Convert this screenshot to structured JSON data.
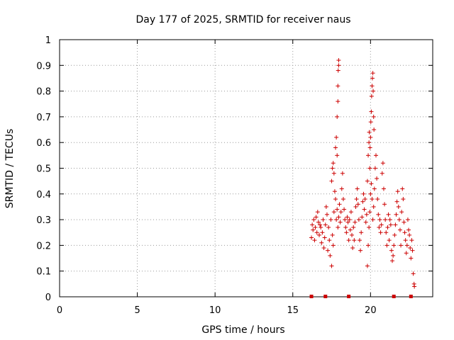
{
  "chart_data": {
    "type": "scatter",
    "title": "Day 177 of 2025, SRMTID for receiver naus",
    "xlabel": "GPS time / hours",
    "ylabel": "SRMTID / TECUs",
    "xlim": [
      0,
      24
    ],
    "ylim": [
      0,
      1
    ],
    "xticks": [
      0,
      5,
      10,
      15,
      20
    ],
    "xtick_labels": [
      "0",
      "5",
      "10",
      "15",
      "20"
    ],
    "yticks": [
      0,
      0.1,
      0.2,
      0.3,
      0.4,
      0.5,
      0.6,
      0.7,
      0.8,
      0.9,
      1
    ],
    "ytick_labels": [
      "0",
      "0.1",
      "0.2",
      "0.3",
      "0.4",
      "0.5",
      "0.6",
      "0.7",
      "0.8",
      "0.9",
      "1"
    ],
    "grid": true,
    "marker": "plus",
    "color": "#cc0000",
    "series": [
      {
        "name": "SRMTID",
        "points": [
          [
            16.2,
            0.23
          ],
          [
            16.25,
            0.28
          ],
          [
            16.3,
            0.26
          ],
          [
            16.35,
            0.3
          ],
          [
            16.4,
            0.22
          ],
          [
            16.45,
            0.27
          ],
          [
            16.5,
            0.31
          ],
          [
            16.55,
            0.25
          ],
          [
            16.6,
            0.33
          ],
          [
            16.65,
            0.29
          ],
          [
            16.7,
            0.24
          ],
          [
            16.75,
            0.28
          ],
          [
            16.8,
            0.27
          ],
          [
            16.85,
            0.21
          ],
          [
            16.9,
            0.25
          ],
          [
            16.95,
            0.3
          ],
          [
            17.0,
            0.19
          ],
          [
            17.05,
            0.23
          ],
          [
            17.1,
            0.28
          ],
          [
            17.15,
            0.35
          ],
          [
            17.2,
            0.32
          ],
          [
            17.25,
            0.18
          ],
          [
            17.3,
            0.27
          ],
          [
            17.35,
            0.22
          ],
          [
            17.4,
            0.16
          ],
          [
            17.45,
            0.3
          ],
          [
            17.5,
            0.12
          ],
          [
            17.55,
            0.24
          ],
          [
            17.6,
            0.2
          ],
          [
            17.65,
            0.33
          ],
          [
            17.5,
            0.45
          ],
          [
            17.55,
            0.5
          ],
          [
            17.6,
            0.52
          ],
          [
            17.65,
            0.48
          ],
          [
            17.7,
            0.41
          ],
          [
            17.75,
            0.58
          ],
          [
            17.8,
            0.62
          ],
          [
            17.85,
            0.55
          ],
          [
            17.85,
            0.7
          ],
          [
            17.9,
            0.76
          ],
          [
            17.9,
            0.82
          ],
          [
            17.92,
            0.88
          ],
          [
            17.95,
            0.9
          ],
          [
            17.95,
            0.92
          ],
          [
            17.75,
            0.38
          ],
          [
            17.8,
            0.3
          ],
          [
            17.85,
            0.34
          ],
          [
            17.9,
            0.27
          ],
          [
            17.95,
            0.31
          ],
          [
            18.0,
            0.36
          ],
          [
            18.05,
            0.29
          ],
          [
            18.1,
            0.33
          ],
          [
            18.15,
            0.42
          ],
          [
            18.2,
            0.48
          ],
          [
            18.25,
            0.38
          ],
          [
            18.3,
            0.34
          ],
          [
            18.35,
            0.3
          ],
          [
            18.4,
            0.27
          ],
          [
            18.45,
            0.25
          ],
          [
            18.5,
            0.31
          ],
          [
            18.55,
            0.29
          ],
          [
            18.6,
            0.22
          ],
          [
            18.65,
            0.3
          ],
          [
            18.7,
            0.26
          ],
          [
            18.75,
            0.33
          ],
          [
            18.8,
            0.24
          ],
          [
            18.85,
            0.19
          ],
          [
            18.9,
            0.27
          ],
          [
            18.95,
            0.22
          ],
          [
            19.0,
            0.29
          ],
          [
            19.05,
            0.35
          ],
          [
            19.1,
            0.38
          ],
          [
            19.15,
            0.42
          ],
          [
            19.2,
            0.36
          ],
          [
            19.25,
            0.3
          ],
          [
            19.3,
            0.22
          ],
          [
            19.35,
            0.18
          ],
          [
            19.4,
            0.25
          ],
          [
            19.45,
            0.31
          ],
          [
            19.5,
            0.37
          ],
          [
            19.55,
            0.4
          ],
          [
            19.6,
            0.34
          ],
          [
            19.65,
            0.38
          ],
          [
            19.7,
            0.29
          ],
          [
            19.75,
            0.32
          ],
          [
            19.8,
            0.45
          ],
          [
            19.85,
            0.55
          ],
          [
            19.9,
            0.6
          ],
          [
            19.92,
            0.64
          ],
          [
            19.95,
            0.5
          ],
          [
            19.97,
            0.58
          ],
          [
            20.0,
            0.62
          ],
          [
            20.02,
            0.68
          ],
          [
            20.05,
            0.72
          ],
          [
            20.07,
            0.78
          ],
          [
            20.1,
            0.82
          ],
          [
            20.12,
            0.85
          ],
          [
            20.15,
            0.87
          ],
          [
            20.17,
            0.8
          ],
          [
            20.2,
            0.7
          ],
          [
            20.22,
            0.65
          ],
          [
            19.8,
            0.12
          ],
          [
            19.85,
            0.2
          ],
          [
            19.9,
            0.27
          ],
          [
            19.95,
            0.33
          ],
          [
            20.0,
            0.4
          ],
          [
            20.05,
            0.44
          ],
          [
            20.1,
            0.38
          ],
          [
            20.15,
            0.3
          ],
          [
            20.2,
            0.35
          ],
          [
            20.25,
            0.42
          ],
          [
            20.3,
            0.5
          ],
          [
            20.35,
            0.55
          ],
          [
            20.4,
            0.46
          ],
          [
            20.45,
            0.38
          ],
          [
            20.5,
            0.32
          ],
          [
            20.55,
            0.27
          ],
          [
            20.6,
            0.3
          ],
          [
            20.65,
            0.25
          ],
          [
            20.7,
            0.28
          ],
          [
            20.75,
            0.48
          ],
          [
            20.8,
            0.52
          ],
          [
            20.85,
            0.42
          ],
          [
            20.9,
            0.36
          ],
          [
            20.95,
            0.3
          ],
          [
            21.0,
            0.25
          ],
          [
            21.05,
            0.2
          ],
          [
            21.1,
            0.27
          ],
          [
            21.15,
            0.32
          ],
          [
            21.2,
            0.22
          ],
          [
            21.25,
            0.3
          ],
          [
            21.3,
            0.28
          ],
          [
            21.35,
            0.18
          ],
          [
            21.4,
            0.14
          ],
          [
            21.45,
            0.16
          ],
          [
            21.5,
            0.2
          ],
          [
            21.55,
            0.24
          ],
          [
            21.6,
            0.28
          ],
          [
            21.65,
            0.32
          ],
          [
            21.7,
            0.37
          ],
          [
            21.75,
            0.41
          ],
          [
            21.8,
            0.35
          ],
          [
            21.85,
            0.3
          ],
          [
            21.9,
            0.26
          ],
          [
            21.95,
            0.2
          ],
          [
            22.0,
            0.33
          ],
          [
            22.05,
            0.42
          ],
          [
            22.1,
            0.38
          ],
          [
            22.15,
            0.29
          ],
          [
            22.2,
            0.25
          ],
          [
            22.25,
            0.22
          ],
          [
            22.3,
            0.17
          ],
          [
            22.35,
            0.2
          ],
          [
            22.4,
            0.3
          ],
          [
            22.45,
            0.26
          ],
          [
            22.5,
            0.24
          ],
          [
            22.55,
            0.19
          ],
          [
            22.6,
            0.15
          ],
          [
            22.65,
            0.22
          ],
          [
            22.7,
            0.18
          ],
          [
            22.75,
            0.09
          ],
          [
            22.8,
            0.05
          ],
          [
            22.82,
            0.04
          ]
        ]
      }
    ],
    "baseline_markers": [
      16.2,
      17.1,
      18.6,
      21.5,
      22.6
    ]
  }
}
